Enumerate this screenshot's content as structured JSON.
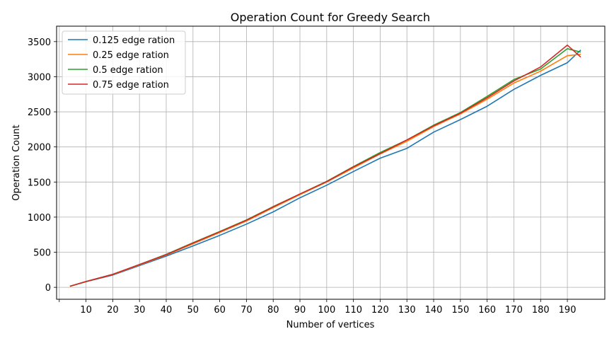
{
  "chart_data": {
    "type": "line",
    "title": "Operation Count for Greedy Search",
    "xlabel": "Number of vertices",
    "ylabel": "Operation Count",
    "xlim": [
      -1,
      204
    ],
    "ylim": [
      -170,
      3720
    ],
    "x_ticks": [
      10,
      20,
      30,
      40,
      50,
      60,
      70,
      80,
      90,
      100,
      110,
      120,
      130,
      140,
      150,
      160,
      170,
      180,
      190
    ],
    "y_ticks": [
      0,
      500,
      1000,
      1500,
      2000,
      2500,
      3000,
      3500
    ],
    "grid": true,
    "legend_position": "upper-left",
    "x": [
      4,
      10,
      20,
      30,
      40,
      50,
      60,
      70,
      80,
      90,
      100,
      110,
      120,
      130,
      140,
      150,
      160,
      170,
      180,
      190,
      195
    ],
    "series": [
      {
        "name": "0.125 edge ration",
        "color": "#1f77b4",
        "values": [
          15,
          80,
          175,
          310,
          445,
          590,
          740,
          900,
          1075,
          1275,
          1455,
          1650,
          1840,
          1980,
          2210,
          2390,
          2580,
          2820,
          3020,
          3200,
          3380
        ]
      },
      {
        "name": "0.25 edge ration",
        "color": "#ff7f0e",
        "values": [
          15,
          82,
          182,
          320,
          460,
          620,
          780,
          945,
          1135,
          1320,
          1500,
          1700,
          1900,
          2080,
          2290,
          2470,
          2680,
          2910,
          3080,
          3300,
          3320
        ]
      },
      {
        "name": "0.5 edge ration",
        "color": "#2ca02c",
        "values": [
          15,
          83,
          185,
          325,
          470,
          635,
          795,
          960,
          1150,
          1330,
          1510,
          1720,
          1920,
          2100,
          2310,
          2490,
          2720,
          2960,
          3110,
          3400,
          3350
        ]
      },
      {
        "name": "0.75 edge ration",
        "color": "#d62728",
        "values": [
          15,
          83,
          185,
          325,
          465,
          630,
          790,
          955,
          1145,
          1330,
          1505,
          1715,
          1905,
          2100,
          2300,
          2480,
          2700,
          2940,
          3140,
          3450,
          3280
        ]
      }
    ]
  }
}
